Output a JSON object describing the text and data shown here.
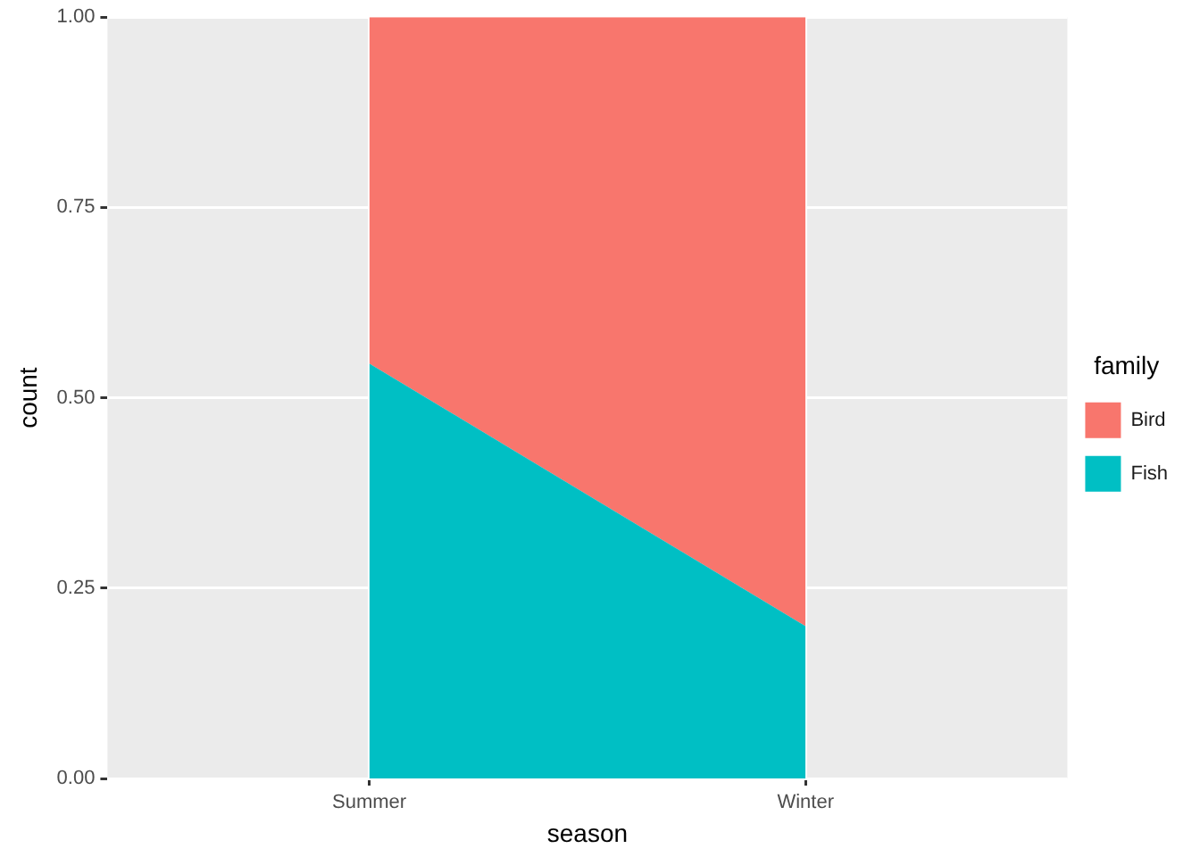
{
  "chart_data": {
    "type": "area",
    "stacked": true,
    "xlabel": "season",
    "ylabel": "count",
    "legend_title": "family",
    "categories": [
      "Summer",
      "Winter"
    ],
    "series": [
      {
        "name": "Fish",
        "color": "#00bfc4",
        "values": [
          0.545,
          0.2
        ]
      },
      {
        "name": "Bird",
        "color": "#f8766d",
        "values": [
          0.455,
          0.8
        ]
      }
    ],
    "ylim": [
      0,
      1
    ],
    "yticks": [
      {
        "value": 0,
        "label": "0.00"
      },
      {
        "value": 0.25,
        "label": "0.25"
      },
      {
        "value": 0.5,
        "label": "0.50"
      },
      {
        "value": 0.75,
        "label": "0.75"
      },
      {
        "value": 1,
        "label": "1.00"
      }
    ],
    "grid": true,
    "legend": "right"
  }
}
